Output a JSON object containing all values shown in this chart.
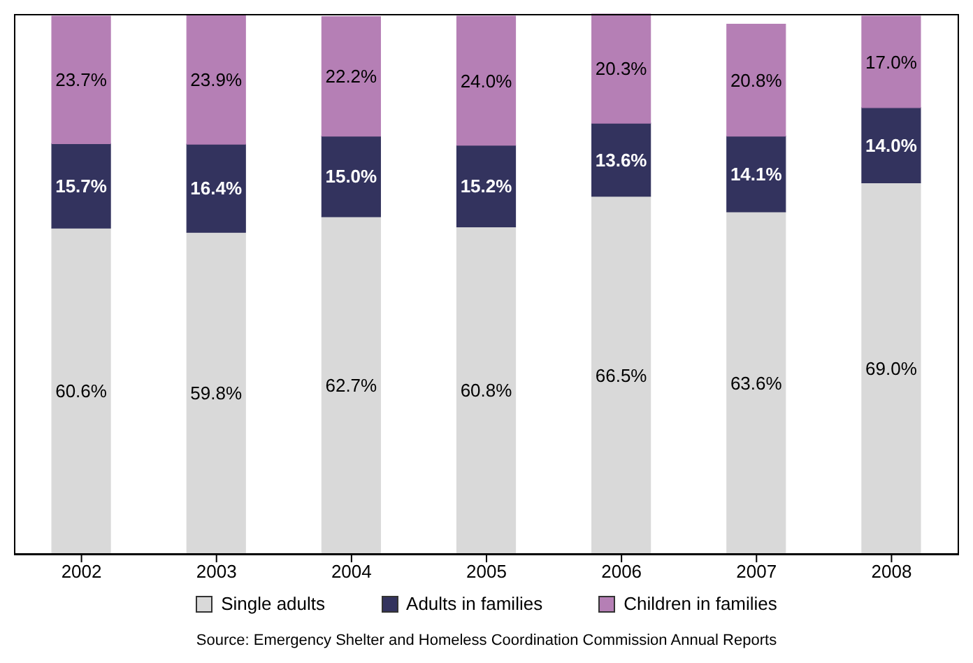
{
  "chart_data": {
    "type": "bar",
    "stacked": true,
    "categories": [
      "2002",
      "2003",
      "2004",
      "2005",
      "2006",
      "2007",
      "2008"
    ],
    "series": [
      {
        "name": "Single adults",
        "color": "#d9d9d9",
        "values": [
          60.6,
          59.8,
          62.7,
          60.8,
          66.5,
          63.6,
          69.0
        ],
        "value_labels": [
          "60.6%",
          "59.8%",
          "62.7%",
          "60.8%",
          "66.5%",
          "63.6%",
          "69.0%"
        ]
      },
      {
        "name": "Adults in families",
        "color": "#33335e",
        "values": [
          15.7,
          16.4,
          15.0,
          15.2,
          13.6,
          14.1,
          14.0
        ],
        "value_labels": [
          "15.7%",
          "16.4%",
          "15.0%",
          "15.2%",
          "13.6%",
          "14.1%",
          "14.0%"
        ]
      },
      {
        "name": "Children in families",
        "color": "#b57fb5",
        "values": [
          23.7,
          23.9,
          22.2,
          24.0,
          20.3,
          20.8,
          17.0
        ],
        "value_labels": [
          "23.7%",
          "23.9%",
          "22.2%",
          "24.0%",
          "20.3%",
          "20.8%",
          "17.0%"
        ]
      }
    ],
    "grid": false,
    "legend": "bottom",
    "annotations": [
      "Source: Emergency Shelter and Homeless Coordination Commission Annual Reports"
    ]
  }
}
